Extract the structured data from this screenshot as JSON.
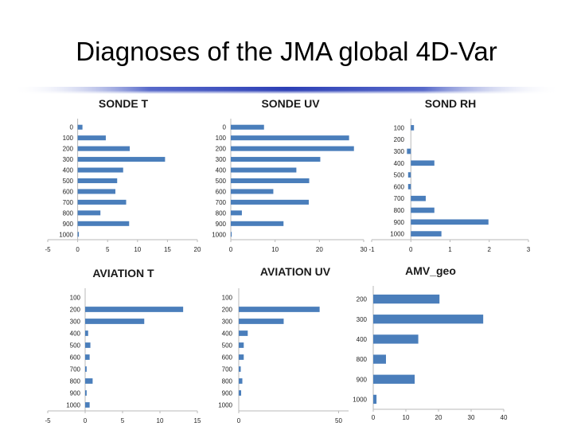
{
  "slide": {
    "title": "Diagnoses of the JMA global 4D-Var"
  },
  "colors": {
    "bar": "#4a7ebb",
    "axis": "#b8b8b8",
    "rule": "#3a4fc0"
  },
  "chart_data": [
    {
      "type": "bar",
      "orientation": "horizontal",
      "title": "SONDE T",
      "categories": [
        "0",
        "100",
        "200",
        "300",
        "400",
        "500",
        "600",
        "700",
        "800",
        "900",
        "1000"
      ],
      "values": [
        0.8,
        4.7,
        8.7,
        14.6,
        7.6,
        6.6,
        6.3,
        8.1,
        3.8,
        8.6,
        0.2
      ],
      "xlim": [
        -5,
        20
      ],
      "xticks": [
        -5,
        0,
        5,
        10,
        15,
        20
      ]
    },
    {
      "type": "bar",
      "orientation": "horizontal",
      "title": "SONDE UV",
      "categories": [
        "0",
        "100",
        "200",
        "300",
        "400",
        "500",
        "600",
        "700",
        "800",
        "900",
        "1000"
      ],
      "values": [
        7.5,
        26.7,
        27.8,
        20.2,
        14.8,
        17.7,
        9.6,
        17.6,
        2.5,
        11.9,
        0.2
      ],
      "xlim": [
        0,
        30
      ],
      "xticks": [
        0,
        10,
        20,
        30
      ]
    },
    {
      "type": "bar",
      "orientation": "horizontal",
      "title": "SOND RH",
      "categories": [
        "100",
        "200",
        "300",
        "400",
        "500",
        "600",
        "700",
        "800",
        "900",
        "1000"
      ],
      "values": [
        0.08,
        0.0,
        -0.1,
        0.6,
        -0.07,
        -0.07,
        0.38,
        0.6,
        1.98,
        0.78
      ],
      "xlim": [
        -1,
        3
      ],
      "xticks": [
        -1,
        0,
        1,
        2,
        3
      ]
    },
    {
      "type": "bar",
      "orientation": "horizontal",
      "title": "AVIATION T",
      "categories": [
        "100",
        "200",
        "300",
        "400",
        "500",
        "600",
        "700",
        "800",
        "900",
        "1000"
      ],
      "values": [
        0.0,
        13.1,
        7.9,
        0.4,
        0.7,
        0.6,
        0.2,
        1.0,
        0.2,
        0.6
      ],
      "xlim": [
        -5,
        15
      ],
      "xticks": [
        -5,
        0,
        5,
        10,
        15
      ]
    },
    {
      "type": "bar",
      "orientation": "horizontal",
      "title": "AVIATION  UV",
      "categories": [
        "100",
        "200",
        "300",
        "400",
        "500",
        "600",
        "700",
        "800",
        "900",
        "1000"
      ],
      "values": [
        0.0,
        40.5,
        22.5,
        4.5,
        2.5,
        2.5,
        1.0,
        1.8,
        1.2,
        0.0
      ],
      "xlim": [
        0,
        55
      ],
      "xticks": [
        0,
        50
      ]
    },
    {
      "type": "bar",
      "orientation": "horizontal",
      "title": "AMV_geo",
      "categories": [
        "200",
        "300",
        "400",
        "800",
        "900",
        "1000"
      ],
      "values": [
        20.3,
        33.7,
        13.8,
        3.9,
        12.7,
        1.0
      ],
      "xlim": [
        0,
        40
      ],
      "xticks": [
        0,
        10,
        20,
        30,
        40
      ]
    }
  ]
}
